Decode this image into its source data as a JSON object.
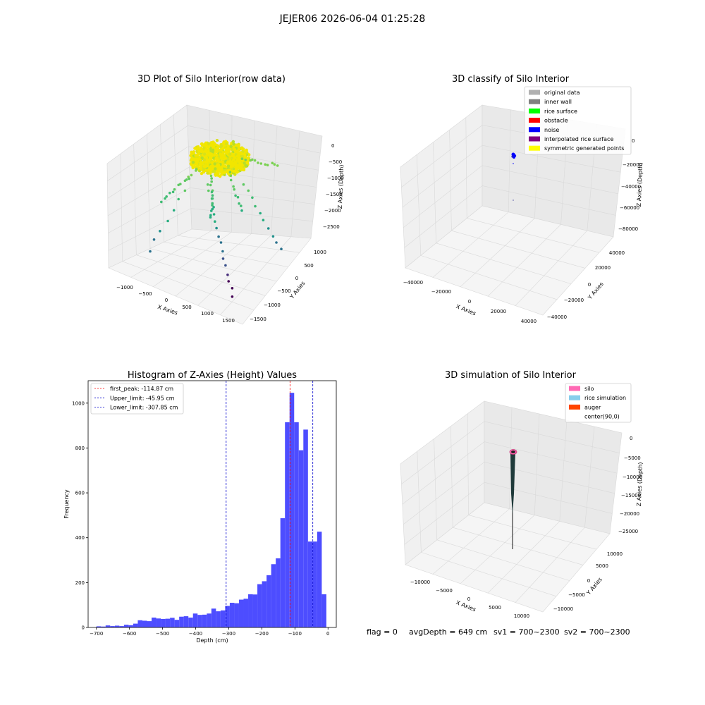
{
  "suptitle": "JEJER06 2026-06-04 01:25:28",
  "footer": {
    "flag": "flag = 0",
    "avg_depth": "avgDepth = 649 cm",
    "sv1": "sv1 = 700~2300",
    "sv2": "sv2 = 700~2300"
  },
  "colors": {
    "histogram_bar": "#4d4dff",
    "peak_line": "#ff0000",
    "limit_line": "#0000cc"
  },
  "chart_data": [
    {
      "type": "scatter",
      "projection": "3d",
      "title": "3D Plot of Silo Interior(row data)",
      "xlabel": "X Axies",
      "ylabel": "Y Axies",
      "zlabel": "Z Axies (Depth)",
      "xticks": [
        "−1000",
        "−500",
        "0",
        "500",
        "1000",
        "1500"
      ],
      "yticks": [
        "−1500",
        "−1000",
        "−500",
        "0",
        "500",
        "1000"
      ],
      "zticks": [
        "0",
        "−500",
        "−1000",
        "−1500",
        "−2000",
        "−2500"
      ],
      "colormap": "viridis",
      "xlim": [
        -1300,
        1600
      ],
      "ylim": [
        -1600,
        1200
      ],
      "zlim": [
        -2800,
        0
      ]
    },
    {
      "type": "scatter",
      "projection": "3d",
      "title": "3D classify of Silo Interior",
      "xlabel": "X Axies",
      "ylabel": "Y Axies",
      "zlabel": "Z Axies (Depth)",
      "xticks": [
        "−40000",
        "−20000",
        "0",
        "20000",
        "40000"
      ],
      "yticks": [
        "−40000",
        "−20000",
        "0",
        "20000",
        "40000"
      ],
      "zticks": [
        "0",
        "−20000",
        "−40000",
        "−60000",
        "−80000"
      ],
      "legend": [
        {
          "label": "original data",
          "color": "#b0b0b0"
        },
        {
          "label": "inner wall",
          "color": "#808080"
        },
        {
          "label": "rice surface",
          "color": "#00ff00"
        },
        {
          "label": "obstacle",
          "color": "#ff0000"
        },
        {
          "label": "noise",
          "color": "#0000ff"
        },
        {
          "label": "interpolated rice surface",
          "color": "#800080"
        },
        {
          "label": "symmetric generated points",
          "color": "#ffff00"
        }
      ],
      "legend_loc": "upper right"
    },
    {
      "type": "bar",
      "title": "Histogram of Z-Axies (Height) Values",
      "xlabel": "Depth (cm)",
      "ylabel": "Frequency",
      "xlim": [
        -725,
        25
      ],
      "ylim": [
        0,
        1100
      ],
      "xticks": [
        "−700",
        "−600",
        "−500",
        "−400",
        "−300",
        "−200",
        "−100",
        "0"
      ],
      "yticks": [
        "0",
        "200",
        "400",
        "600",
        "800",
        "1000"
      ],
      "bin_width": 13.9,
      "bin_start": -700,
      "values": [
        5,
        4,
        9,
        6,
        8,
        6,
        12,
        10,
        17,
        32,
        30,
        28,
        44,
        40,
        38,
        39,
        43,
        34,
        48,
        50,
        44,
        62,
        56,
        57,
        62,
        84,
        72,
        76,
        96,
        110,
        108,
        124,
        128,
        148,
        147,
        193,
        206,
        233,
        282,
        308,
        487,
        915,
        1046,
        915,
        790,
        882,
        383,
        383,
        427,
        148
      ],
      "vlines": [
        {
          "label": "first_peak: -114.87 cm",
          "x": -114.87,
          "color": "#ff0000"
        },
        {
          "label": "Upper_limit: -45.95 cm",
          "x": -45.95,
          "color": "#0000cc"
        },
        {
          "label": "Lower_limit: -307.85 cm",
          "x": -307.85,
          "color": "#0000cc"
        }
      ],
      "legend_loc": "upper left"
    },
    {
      "type": "line",
      "projection": "3d",
      "title": "3D simulation of Silo Interior",
      "xlabel": "X Axies",
      "ylabel": "Y Axies",
      "zlabel": "Z Axies (Depth)",
      "xticks": [
        "−10000",
        "−5000",
        "0",
        "5000",
        "10000"
      ],
      "yticks": [
        "−10000",
        "−5000",
        "0",
        "5000",
        "10000"
      ],
      "zticks": [
        "0",
        "−5000",
        "−10000",
        "−15000",
        "−20000",
        "−25000"
      ],
      "legend": [
        {
          "label": "silo",
          "color": "#ff69b4"
        },
        {
          "label": "rice simulation",
          "color": "#87ceeb"
        },
        {
          "label": "auger",
          "color": "#ff4500"
        },
        {
          "label": "center(90,0)",
          "color": "#ffffff"
        }
      ],
      "legend_loc": "upper right"
    }
  ]
}
